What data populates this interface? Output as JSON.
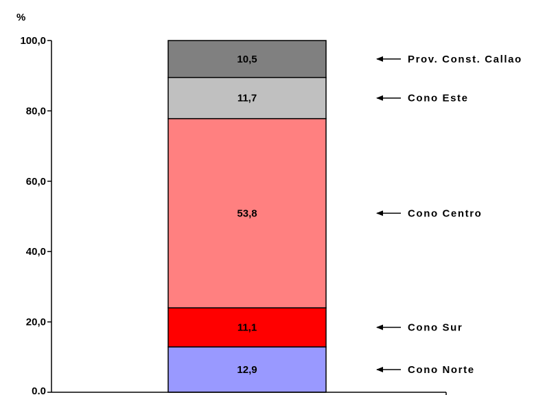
{
  "chart_data": {
    "type": "bar",
    "stacked": true,
    "ylabel": "%",
    "ylim": [
      0,
      100
    ],
    "yticks": [
      "0.0",
      "20,0",
      "40,0",
      "60,0",
      "80,0",
      "100,0"
    ],
    "ytick_values": [
      0,
      20,
      40,
      60,
      80,
      100
    ],
    "grid": false,
    "legend": "annotations-right",
    "series": [
      {
        "name": "Cono Norte",
        "value": 12.9,
        "label": "12,9",
        "color": "#9999ff"
      },
      {
        "name": "Cono Sur",
        "value": 11.1,
        "label": "11,1",
        "color": "#ff0000"
      },
      {
        "name": "Cono Centro",
        "value": 53.8,
        "label": "53,8",
        "color": "#ff8080"
      },
      {
        "name": "Cono Este",
        "value": 11.7,
        "label": "11,7",
        "color": "#c0c0c0"
      },
      {
        "name": "Prov. Const. Callao",
        "value": 10.5,
        "label": "10,5",
        "color": "#808080"
      }
    ]
  }
}
